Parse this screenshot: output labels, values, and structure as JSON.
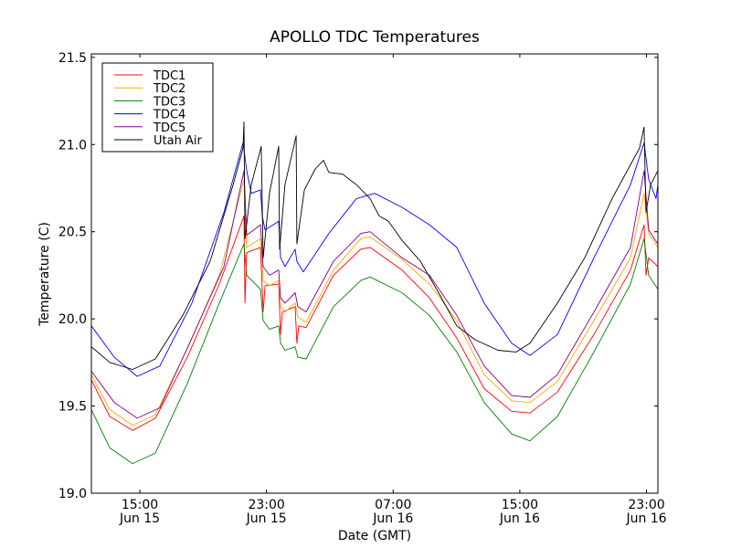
{
  "chart_data": {
    "type": "line",
    "title": "APOLLO TDC Temperatures",
    "xlabel": "Date (GMT)",
    "ylabel": "Temperature (C)",
    "x_units": "hours since Jun 15 00:00 GMT",
    "xlim": [
      11.94,
      47.72
    ],
    "ylim": [
      19.0,
      21.52
    ],
    "grid": false,
    "legend_position": "top-left",
    "x_ticks": [
      {
        "value": 15,
        "label_time": "15:00",
        "label_date": "Jun 15"
      },
      {
        "value": 23,
        "label_time": "23:00",
        "label_date": "Jun 15"
      },
      {
        "value": 31,
        "label_time": "07:00",
        "label_date": "Jun 16"
      },
      {
        "value": 39,
        "label_time": "15:00",
        "label_date": "Jun 16"
      },
      {
        "value": 47,
        "label_time": "23:00",
        "label_date": "Jun 16"
      }
    ],
    "y_ticks": [
      {
        "value": 19.0,
        "label": "19.0"
      },
      {
        "value": 19.5,
        "label": "19.5"
      },
      {
        "value": 20.0,
        "label": "20.0"
      },
      {
        "value": 20.5,
        "label": "20.5"
      },
      {
        "value": 21.0,
        "label": "21.0"
      },
      {
        "value": 21.5,
        "label": "21.5"
      }
    ],
    "series": [
      {
        "name": "TDC1",
        "color": "#ff0000",
        "points": [
          [
            11.94,
            19.65
          ],
          [
            13.1,
            19.44
          ],
          [
            14.54,
            19.36
          ],
          [
            15.98,
            19.43
          ],
          [
            18.0,
            19.78
          ],
          [
            20.02,
            20.2
          ],
          [
            21.58,
            20.59
          ],
          [
            21.64,
            20.09
          ],
          [
            21.75,
            20.38
          ],
          [
            22.62,
            20.41
          ],
          [
            22.79,
            20.04
          ],
          [
            22.91,
            20.19
          ],
          [
            23.77,
            20.2
          ],
          [
            23.89,
            19.91
          ],
          [
            24.0,
            20.04
          ],
          [
            24.81,
            20.07
          ],
          [
            24.92,
            19.86
          ],
          [
            25.04,
            19.96
          ],
          [
            25.5,
            19.95
          ],
          [
            27.23,
            20.25
          ],
          [
            28.96,
            20.4
          ],
          [
            29.54,
            20.41
          ],
          [
            31.56,
            20.28
          ],
          [
            33.29,
            20.12
          ],
          [
            35.02,
            19.89
          ],
          [
            36.75,
            19.6
          ],
          [
            38.48,
            19.47
          ],
          [
            39.64,
            19.46
          ],
          [
            41.37,
            19.58
          ],
          [
            43.68,
            19.91
          ],
          [
            45.99,
            20.28
          ],
          [
            46.85,
            20.54
          ],
          [
            46.97,
            20.25
          ],
          [
            47.14,
            20.35
          ],
          [
            47.72,
            20.3
          ]
        ]
      },
      {
        "name": "TDC2",
        "color": "#ffa500",
        "points": [
          [
            11.94,
            19.68
          ],
          [
            13.1,
            19.48
          ],
          [
            14.54,
            19.39
          ],
          [
            15.98,
            19.45
          ],
          [
            18.0,
            19.83
          ],
          [
            20.02,
            20.25
          ],
          [
            21.58,
            20.8
          ],
          [
            21.75,
            20.41
          ],
          [
            22.62,
            20.46
          ],
          [
            22.79,
            20.22
          ],
          [
            23.19,
            20.19
          ],
          [
            23.77,
            20.22
          ],
          [
            23.89,
            20.07
          ],
          [
            24.17,
            20.04
          ],
          [
            24.81,
            20.09
          ],
          [
            24.98,
            20.01
          ],
          [
            25.5,
            19.98
          ],
          [
            27.23,
            20.28
          ],
          [
            28.96,
            20.46
          ],
          [
            29.54,
            20.47
          ],
          [
            31.56,
            20.34
          ],
          [
            33.29,
            20.2
          ],
          [
            35.02,
            19.99
          ],
          [
            36.75,
            19.68
          ],
          [
            38.48,
            19.53
          ],
          [
            39.64,
            19.52
          ],
          [
            41.37,
            19.64
          ],
          [
            43.68,
            19.99
          ],
          [
            45.99,
            20.35
          ],
          [
            46.85,
            20.72
          ],
          [
            47.14,
            20.49
          ],
          [
            47.72,
            20.41
          ]
        ]
      },
      {
        "name": "TDC3",
        "color": "#008000",
        "points": [
          [
            11.94,
            19.48
          ],
          [
            13.1,
            19.26
          ],
          [
            14.54,
            19.17
          ],
          [
            15.98,
            19.23
          ],
          [
            18.0,
            19.63
          ],
          [
            20.02,
            20.09
          ],
          [
            21.58,
            20.43
          ],
          [
            21.75,
            20.25
          ],
          [
            22.62,
            20.17
          ],
          [
            22.79,
            19.99
          ],
          [
            23.19,
            19.94
          ],
          [
            23.77,
            19.96
          ],
          [
            23.89,
            19.86
          ],
          [
            24.17,
            19.82
          ],
          [
            24.81,
            19.84
          ],
          [
            24.98,
            19.78
          ],
          [
            25.5,
            19.77
          ],
          [
            27.23,
            20.07
          ],
          [
            28.96,
            20.22
          ],
          [
            29.54,
            20.24
          ],
          [
            31.56,
            20.15
          ],
          [
            33.29,
            20.02
          ],
          [
            35.02,
            19.81
          ],
          [
            36.75,
            19.52
          ],
          [
            38.48,
            19.34
          ],
          [
            39.64,
            19.3
          ],
          [
            41.37,
            19.44
          ],
          [
            43.68,
            19.81
          ],
          [
            45.99,
            20.2
          ],
          [
            46.85,
            20.46
          ],
          [
            47.14,
            20.25
          ],
          [
            47.72,
            20.17
          ]
        ]
      },
      {
        "name": "TDC4",
        "color": "#0000ff",
        "points": [
          [
            11.94,
            19.96
          ],
          [
            13.39,
            19.78
          ],
          [
            14.83,
            19.67
          ],
          [
            16.27,
            19.73
          ],
          [
            18.29,
            20.09
          ],
          [
            20.31,
            20.61
          ],
          [
            21.52,
            21.01
          ],
          [
            21.75,
            20.85
          ],
          [
            22.04,
            20.72
          ],
          [
            22.62,
            20.74
          ],
          [
            22.73,
            20.59
          ],
          [
            22.91,
            20.51
          ],
          [
            23.77,
            20.56
          ],
          [
            23.89,
            20.35
          ],
          [
            24.17,
            20.3
          ],
          [
            24.81,
            20.4
          ],
          [
            24.92,
            20.33
          ],
          [
            25.33,
            20.27
          ],
          [
            26.94,
            20.49
          ],
          [
            28.68,
            20.69
          ],
          [
            29.83,
            20.72
          ],
          [
            31.56,
            20.64
          ],
          [
            33.29,
            20.54
          ],
          [
            35.02,
            20.41
          ],
          [
            36.75,
            20.09
          ],
          [
            38.48,
            19.86
          ],
          [
            39.64,
            19.79
          ],
          [
            41.37,
            19.91
          ],
          [
            43.68,
            20.35
          ],
          [
            45.99,
            20.77
          ],
          [
            46.85,
            21.01
          ],
          [
            47.14,
            20.8
          ],
          [
            47.6,
            20.69
          ],
          [
            47.72,
            20.77
          ]
        ]
      },
      {
        "name": "TDC5",
        "color": "#800080",
        "points": [
          [
            11.94,
            19.7
          ],
          [
            13.39,
            19.52
          ],
          [
            14.83,
            19.43
          ],
          [
            16.27,
            19.49
          ],
          [
            18.29,
            19.89
          ],
          [
            20.31,
            20.3
          ],
          [
            21.58,
            20.85
          ],
          [
            21.75,
            20.48
          ],
          [
            22.62,
            20.54
          ],
          [
            22.79,
            20.3
          ],
          [
            23.19,
            20.25
          ],
          [
            23.77,
            20.28
          ],
          [
            23.89,
            20.12
          ],
          [
            24.17,
            20.09
          ],
          [
            24.81,
            20.15
          ],
          [
            24.98,
            20.07
          ],
          [
            25.5,
            20.04
          ],
          [
            27.23,
            20.33
          ],
          [
            28.96,
            20.49
          ],
          [
            29.54,
            20.5
          ],
          [
            31.56,
            20.35
          ],
          [
            33.29,
            20.25
          ],
          [
            35.02,
            20.02
          ],
          [
            36.75,
            19.73
          ],
          [
            38.48,
            19.56
          ],
          [
            39.64,
            19.55
          ],
          [
            41.37,
            19.68
          ],
          [
            43.68,
            20.04
          ],
          [
            45.99,
            20.41
          ],
          [
            46.85,
            20.85
          ],
          [
            47.14,
            20.51
          ],
          [
            47.72,
            20.43
          ]
        ]
      },
      {
        "name": "Utah Air",
        "color": "#000000",
        "points": [
          [
            11.94,
            19.84
          ],
          [
            13.1,
            19.75
          ],
          [
            14.54,
            19.71
          ],
          [
            15.98,
            19.77
          ],
          [
            17.71,
            20.02
          ],
          [
            19.44,
            20.33
          ],
          [
            20.89,
            20.77
          ],
          [
            21.52,
            20.98
          ],
          [
            21.58,
            21.13
          ],
          [
            21.64,
            20.46
          ],
          [
            22.04,
            20.77
          ],
          [
            22.67,
            20.99
          ],
          [
            22.79,
            20.35
          ],
          [
            23.19,
            20.72
          ],
          [
            23.77,
            20.99
          ],
          [
            23.83,
            20.4
          ],
          [
            24.17,
            20.77
          ],
          [
            24.87,
            21.05
          ],
          [
            24.92,
            20.43
          ],
          [
            25.39,
            20.74
          ],
          [
            26.08,
            20.86
          ],
          [
            26.6,
            20.91
          ],
          [
            26.94,
            20.84
          ],
          [
            27.81,
            20.83
          ],
          [
            28.68,
            20.77
          ],
          [
            29.54,
            20.69
          ],
          [
            30.12,
            20.59
          ],
          [
            30.7,
            20.56
          ],
          [
            31.56,
            20.45
          ],
          [
            32.72,
            20.33
          ],
          [
            33.87,
            20.15
          ],
          [
            35.02,
            19.96
          ],
          [
            36.18,
            19.88
          ],
          [
            37.62,
            19.82
          ],
          [
            38.77,
            19.81
          ],
          [
            39.64,
            19.86
          ],
          [
            41.37,
            20.09
          ],
          [
            43.1,
            20.35
          ],
          [
            44.83,
            20.69
          ],
          [
            46.56,
            20.98
          ],
          [
            46.85,
            21.1
          ],
          [
            46.97,
            20.61
          ],
          [
            47.26,
            20.77
          ],
          [
            47.72,
            20.85
          ]
        ]
      }
    ]
  }
}
